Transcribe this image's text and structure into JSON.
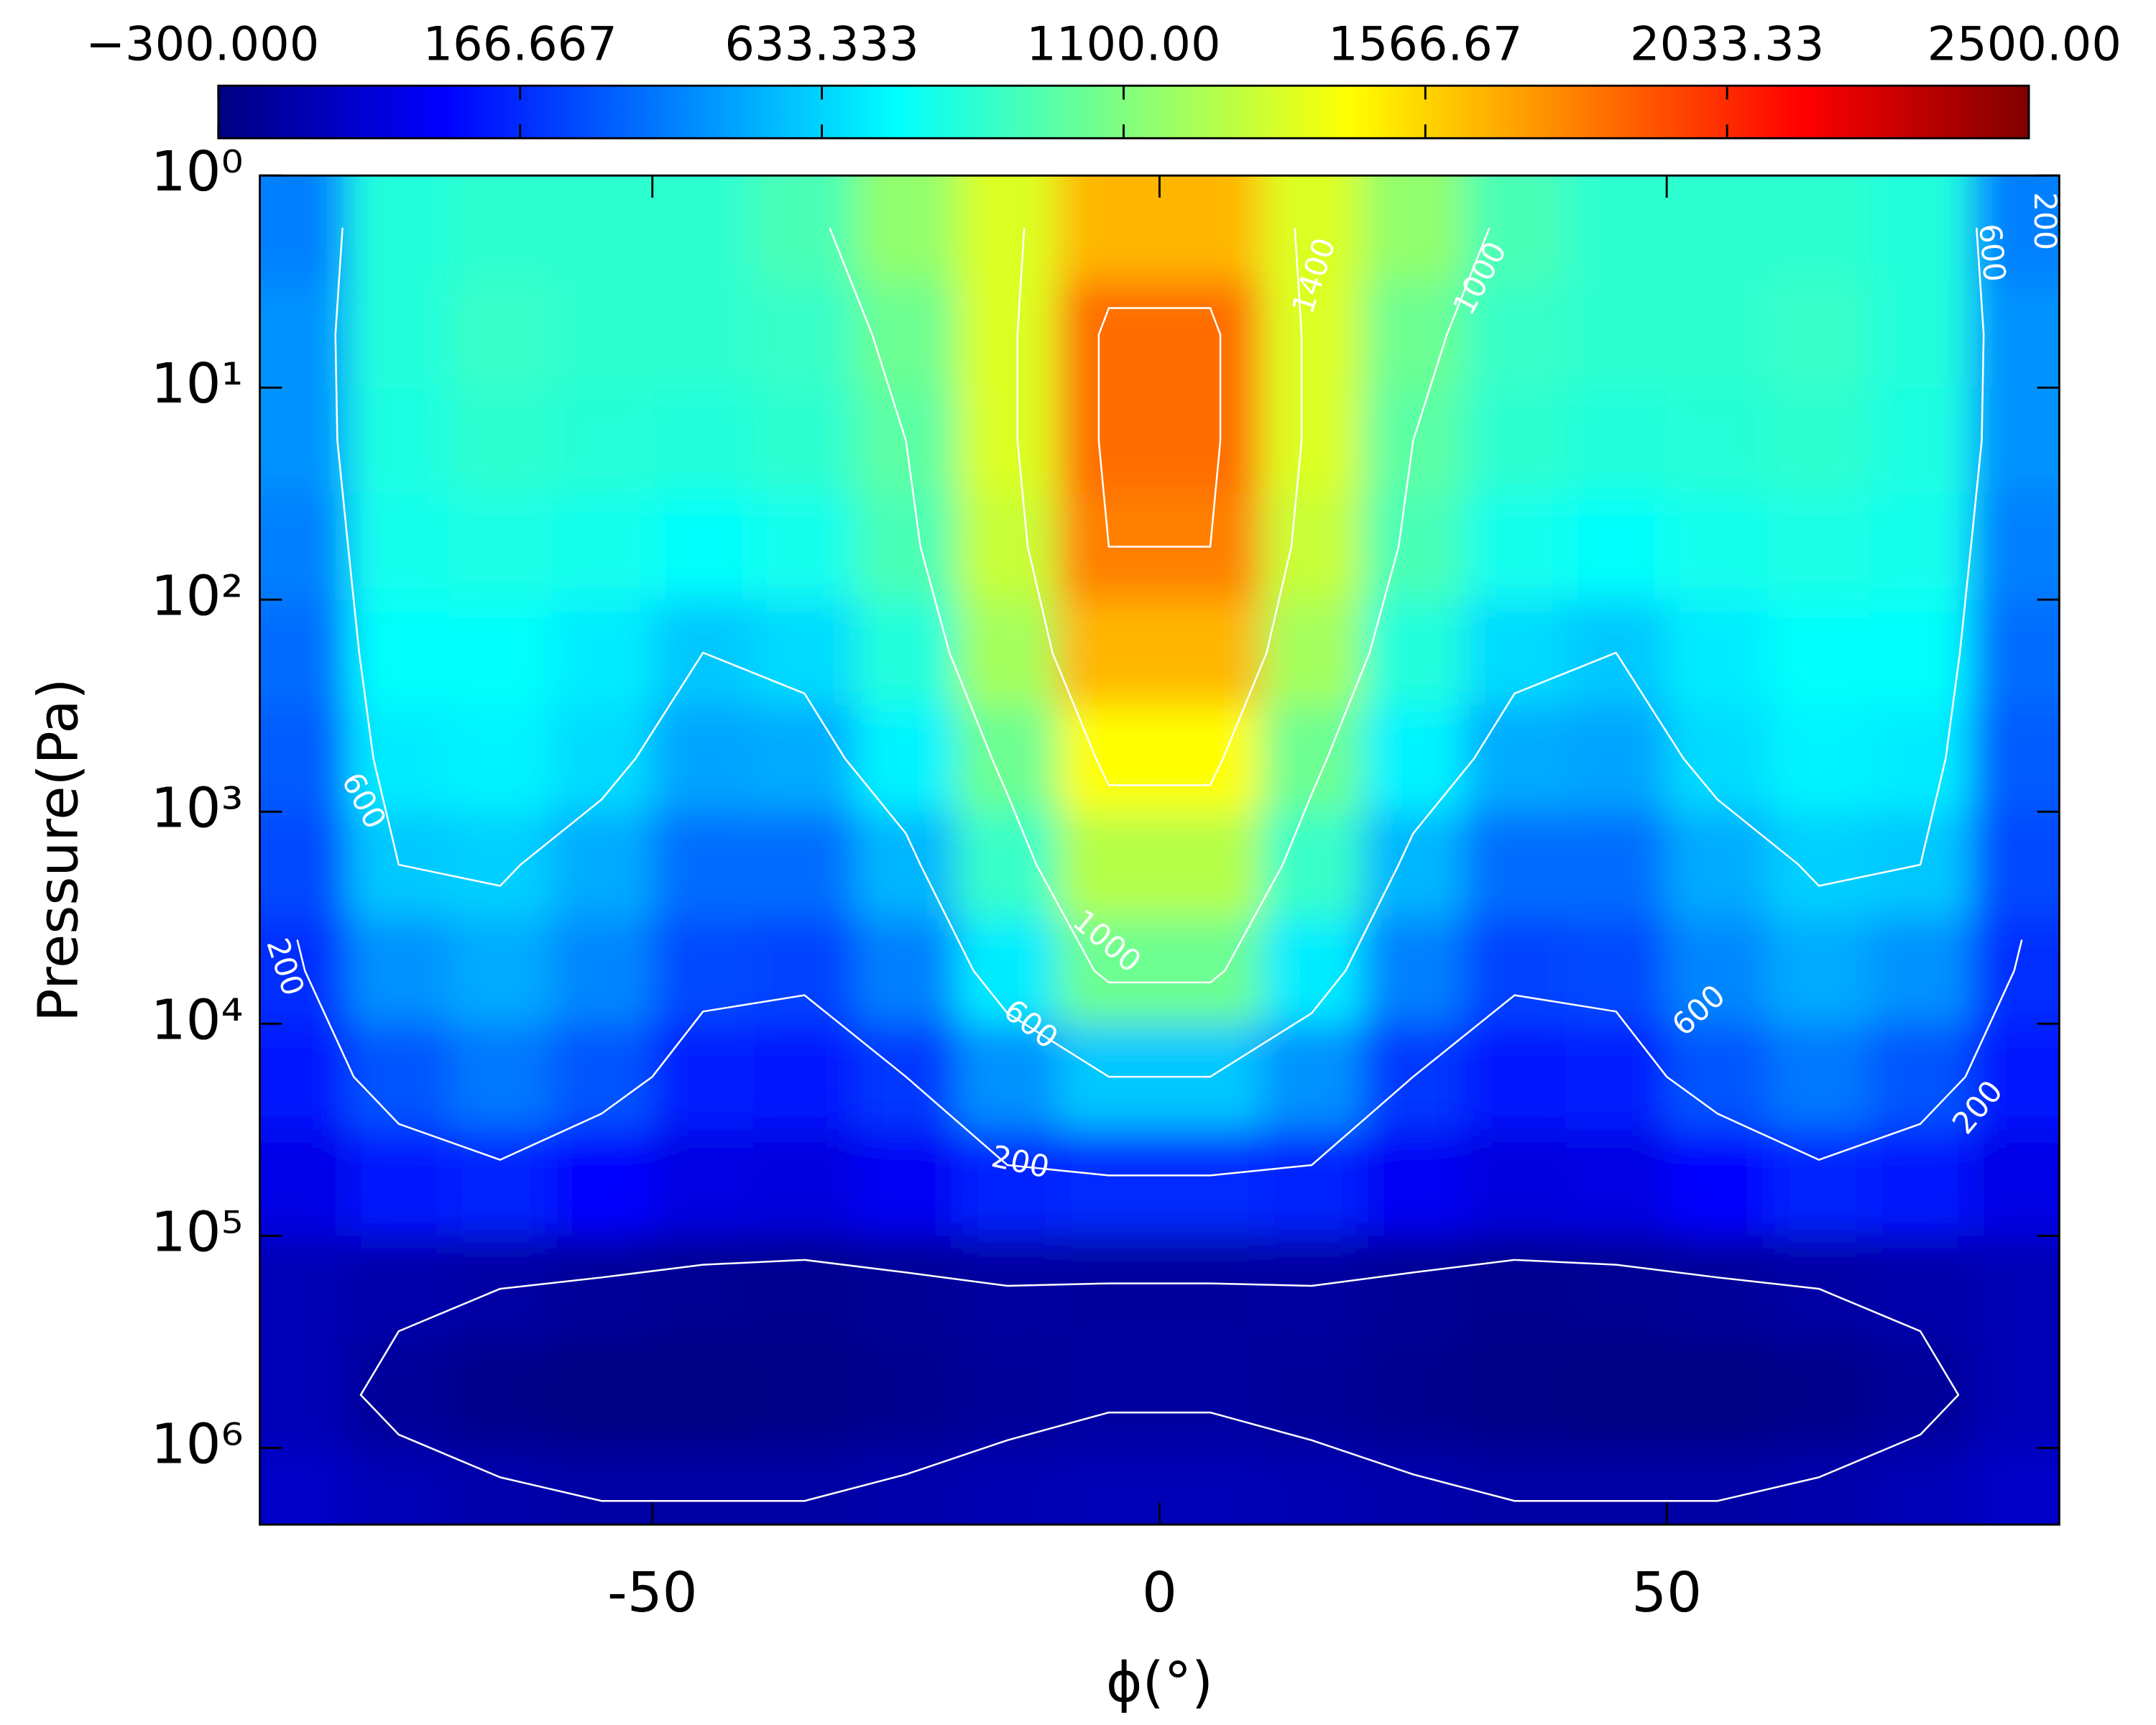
{
  "chart_data": {
    "type": "contourf",
    "xlabel": "ϕ(°)",
    "ylabel": "Pressure(Pa)",
    "xlim": [
      -88.7,
      88.7
    ],
    "xticks": [
      -50,
      0,
      50
    ],
    "ylim": [
      1,
      2300000
    ],
    "ylog": true,
    "y_reversed": true,
    "yticks": [
      {
        "value": 1,
        "label": "10⁰"
      },
      {
        "value": 10,
        "label": "10¹"
      },
      {
        "value": 100,
        "label": "10²"
      },
      {
        "value": 1000,
        "label": "10³"
      },
      {
        "value": 10000,
        "label": "10⁴"
      },
      {
        "value": 100000,
        "label": "10⁵"
      },
      {
        "value": 1000000,
        "label": "10⁶"
      }
    ],
    "colormap": "jet",
    "colorbar": {
      "lim": [
        -300,
        2500
      ],
      "ticks": [
        {
          "value": -300,
          "label": "−300.000"
        },
        166.667,
        633.333,
        {
          "value": 1100,
          "label": "1100.00"
        },
        1566.67,
        2033.33,
        {
          "value": 2500,
          "label": "2500.00"
        }
      ]
    },
    "contour_levels": [
      -200,
      200,
      600,
      1000,
      1400,
      1800
    ],
    "x": [
      -85,
      -75,
      -65,
      -55,
      -45,
      -35,
      -25,
      -15,
      -5,
      5,
      15,
      25,
      35,
      45,
      55,
      65,
      75,
      85
    ],
    "y": [
      1.778,
      5.623,
      17.78,
      56.23,
      177.8,
      562.3,
      1778,
      5623,
      17783,
      56234,
      177828,
      562341,
      1778279
    ],
    "z": [
      [
        400,
        850,
        880,
        880,
        880,
        950,
        1150,
        1350,
        1650,
        1650,
        1350,
        1150,
        950,
        880,
        880,
        880,
        850,
        400
      ],
      [
        450,
        850,
        900,
        880,
        880,
        900,
        1050,
        1350,
        1850,
        1850,
        1350,
        1050,
        900,
        880,
        880,
        900,
        850,
        450
      ],
      [
        450,
        830,
        880,
        860,
        850,
        880,
        1000,
        1350,
        1850,
        1850,
        1350,
        1000,
        880,
        850,
        860,
        880,
        830,
        450
      ],
      [
        400,
        800,
        820,
        800,
        760,
        800,
        950,
        1300,
        1800,
        1800,
        1300,
        950,
        800,
        760,
        800,
        820,
        800,
        400
      ],
      [
        350,
        760,
        760,
        700,
        600,
        650,
        850,
        1200,
        1650,
        1650,
        1200,
        850,
        650,
        600,
        700,
        760,
        760,
        350
      ],
      [
        300,
        700,
        720,
        650,
        500,
        520,
        720,
        1050,
        1450,
        1450,
        1050,
        720,
        520,
        500,
        650,
        720,
        700,
        300
      ],
      [
        250,
        600,
        620,
        520,
        350,
        350,
        550,
        900,
        1250,
        1250,
        900,
        550,
        350,
        350,
        520,
        620,
        600,
        250
      ],
      [
        180,
        450,
        520,
        420,
        250,
        230,
        400,
        700,
        1050,
        1050,
        700,
        400,
        230,
        250,
        420,
        520,
        450,
        180
      ],
      [
        100,
        280,
        380,
        280,
        120,
        100,
        200,
        450,
        600,
        600,
        450,
        200,
        100,
        120,
        280,
        380,
        280,
        100
      ],
      [
        -20,
        100,
        150,
        50,
        -30,
        -40,
        20,
        150,
        170,
        170,
        150,
        20,
        -40,
        -30,
        50,
        150,
        100,
        -20
      ],
      [
        -150,
        -180,
        -200,
        -230,
        -250,
        -260,
        -240,
        -210,
        -220,
        -220,
        -210,
        -240,
        -260,
        -250,
        -230,
        -200,
        -180,
        -150
      ],
      [
        -150,
        -230,
        -270,
        -290,
        -290,
        -280,
        -260,
        -230,
        -210,
        -210,
        -230,
        -260,
        -280,
        -290,
        -290,
        -270,
        -230,
        -150
      ],
      [
        -100,
        -150,
        -180,
        -200,
        -200,
        -200,
        -180,
        -160,
        -150,
        -150,
        -160,
        -180,
        -200,
        -200,
        -200,
        -180,
        -150,
        -100
      ]
    ]
  }
}
